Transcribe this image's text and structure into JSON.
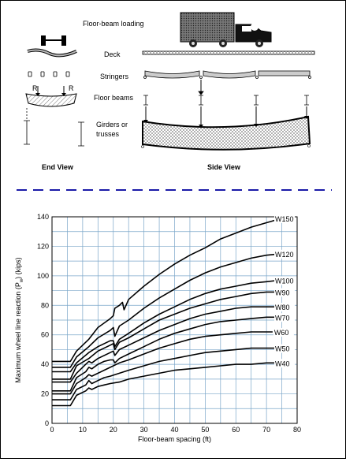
{
  "diagram": {
    "title": "Floor-beam loading",
    "parts": {
      "deck": "Deck",
      "stringers": "Stringers",
      "floor_beams": "Floor beams",
      "girders": "Girders or trusses"
    },
    "girders_line1": "Girders or",
    "girders_line2": "trusses",
    "reaction_left": "R",
    "reaction_right": "R",
    "end_view": "End View",
    "side_view": "Side View",
    "separator_color": "#1a1aa8"
  },
  "chart_data": {
    "type": "line",
    "xlabel": "Floor-beam spacing (ft)",
    "ylabel": "Maximum wheel line reaction (P",
    "ylabel_sub": "w",
    "ylabel_end": ") (kips)",
    "xlim": [
      0,
      80
    ],
    "ylim": [
      0,
      140
    ],
    "x_ticks": [
      "0",
      "10",
      "20",
      "30",
      "40",
      "50",
      "60",
      "70",
      "80"
    ],
    "y_ticks": [
      "0",
      "20",
      "40",
      "60",
      "80",
      "100",
      "120",
      "140"
    ],
    "grid": true,
    "grid_color": "#7aa6c9",
    "series": [
      {
        "name": "W150",
        "points": [
          [
            0,
            42
          ],
          [
            6,
            42
          ],
          [
            8,
            49
          ],
          [
            12,
            57
          ],
          [
            15,
            65
          ],
          [
            19,
            71
          ],
          [
            20,
            73
          ],
          [
            20.5,
            78
          ],
          [
            22,
            80
          ],
          [
            23,
            82
          ],
          [
            23.5,
            77
          ],
          [
            25,
            84
          ],
          [
            30,
            93
          ],
          [
            35,
            101
          ],
          [
            40,
            108
          ],
          [
            45,
            114
          ],
          [
            50,
            119
          ],
          [
            55,
            125
          ],
          [
            60,
            129
          ],
          [
            65,
            133
          ],
          [
            70,
            136
          ],
          [
            75,
            139
          ]
        ]
      },
      {
        "name": "W120",
        "points": [
          [
            0,
            38
          ],
          [
            6,
            38
          ],
          [
            8,
            45
          ],
          [
            12,
            52
          ],
          [
            15,
            58
          ],
          [
            19,
            63
          ],
          [
            20,
            65
          ],
          [
            20.5,
            59
          ],
          [
            22,
            66
          ],
          [
            25,
            70
          ],
          [
            30,
            78
          ],
          [
            35,
            85
          ],
          [
            40,
            91
          ],
          [
            45,
            97
          ],
          [
            50,
            102
          ],
          [
            55,
            106
          ],
          [
            60,
            109
          ],
          [
            65,
            112
          ],
          [
            70,
            114
          ],
          [
            75,
            115
          ]
        ]
      },
      {
        "name": "W100",
        "points": [
          [
            0,
            35
          ],
          [
            6,
            35
          ],
          [
            8,
            41
          ],
          [
            12,
            48
          ],
          [
            15,
            52
          ],
          [
            19,
            56
          ],
          [
            20,
            56
          ],
          [
            20.5,
            52
          ],
          [
            22,
            57
          ],
          [
            25,
            61
          ],
          [
            30,
            68
          ],
          [
            35,
            74
          ],
          [
            40,
            79
          ],
          [
            45,
            84
          ],
          [
            50,
            88
          ],
          [
            55,
            91
          ],
          [
            60,
            93
          ],
          [
            65,
            95
          ],
          [
            70,
            96
          ],
          [
            74,
            97
          ]
        ]
      },
      {
        "name": "W90",
        "points": [
          [
            0,
            30
          ],
          [
            6,
            30
          ],
          [
            8,
            39
          ],
          [
            12,
            44
          ],
          [
            15,
            49
          ],
          [
            19,
            53
          ],
          [
            20,
            54
          ],
          [
            20.5,
            50
          ],
          [
            22,
            55
          ],
          [
            25,
            58
          ],
          [
            30,
            64
          ],
          [
            35,
            70
          ],
          [
            40,
            74
          ],
          [
            45,
            78
          ],
          [
            50,
            81
          ],
          [
            55,
            84
          ],
          [
            60,
            86
          ],
          [
            65,
            88
          ],
          [
            70,
            89
          ],
          [
            74,
            89
          ]
        ]
      },
      {
        "name": "W80",
        "points": [
          [
            0,
            28
          ],
          [
            6,
            28
          ],
          [
            8,
            34
          ],
          [
            11,
            40
          ],
          [
            12,
            42
          ],
          [
            13,
            41
          ],
          [
            15,
            44
          ],
          [
            19,
            48
          ],
          [
            20,
            49
          ],
          [
            20.5,
            46
          ],
          [
            22,
            50
          ],
          [
            25,
            53
          ],
          [
            30,
            58
          ],
          [
            35,
            63
          ],
          [
            40,
            67
          ],
          [
            45,
            71
          ],
          [
            50,
            74
          ],
          [
            55,
            76
          ],
          [
            60,
            78
          ],
          [
            65,
            79
          ],
          [
            70,
            79
          ],
          [
            74,
            79
          ]
        ]
      },
      {
        "name": "W70",
        "points": [
          [
            0,
            22
          ],
          [
            6,
            22
          ],
          [
            8,
            31
          ],
          [
            11,
            35
          ],
          [
            12,
            38
          ],
          [
            13,
            37
          ],
          [
            15,
            40
          ],
          [
            17,
            42
          ],
          [
            19,
            43
          ],
          [
            20,
            43
          ],
          [
            20.5,
            41
          ],
          [
            22,
            44
          ],
          [
            25,
            47
          ],
          [
            30,
            52
          ],
          [
            35,
            57
          ],
          [
            40,
            61
          ],
          [
            45,
            64
          ],
          [
            50,
            67
          ],
          [
            55,
            69
          ],
          [
            60,
            70
          ],
          [
            65,
            71
          ],
          [
            70,
            72
          ],
          [
            74,
            72
          ]
        ]
      },
      {
        "name": "W60",
        "points": [
          [
            0,
            20
          ],
          [
            6,
            20
          ],
          [
            8,
            27
          ],
          [
            11,
            31
          ],
          [
            12,
            33
          ],
          [
            13,
            32
          ],
          [
            15,
            34
          ],
          [
            17,
            36
          ],
          [
            19,
            38
          ],
          [
            22,
            41
          ],
          [
            25,
            43
          ],
          [
            30,
            47
          ],
          [
            35,
            51
          ],
          [
            40,
            54
          ],
          [
            45,
            57
          ],
          [
            50,
            59
          ],
          [
            55,
            60
          ],
          [
            60,
            61
          ],
          [
            65,
            62
          ],
          [
            70,
            62
          ],
          [
            72,
            62
          ]
        ]
      },
      {
        "name": "W50",
        "points": [
          [
            0,
            16
          ],
          [
            6,
            16
          ],
          [
            8,
            23
          ],
          [
            11,
            26
          ],
          [
            12,
            29
          ],
          [
            13,
            27
          ],
          [
            15,
            29
          ],
          [
            17,
            31
          ],
          [
            19,
            32
          ],
          [
            22,
            34
          ],
          [
            25,
            36
          ],
          [
            30,
            39
          ],
          [
            35,
            42
          ],
          [
            40,
            44
          ],
          [
            45,
            46
          ],
          [
            50,
            48
          ],
          [
            55,
            49
          ],
          [
            60,
            50
          ],
          [
            65,
            51
          ],
          [
            70,
            51
          ],
          [
            73,
            51
          ]
        ]
      },
      {
        "name": "W40",
        "points": [
          [
            0,
            12
          ],
          [
            6,
            12
          ],
          [
            8,
            19
          ],
          [
            11,
            22
          ],
          [
            12,
            24
          ],
          [
            13,
            23
          ],
          [
            15,
            25
          ],
          [
            17,
            26
          ],
          [
            19,
            27
          ],
          [
            22,
            28
          ],
          [
            25,
            30
          ],
          [
            30,
            32
          ],
          [
            35,
            34
          ],
          [
            40,
            36
          ],
          [
            45,
            37
          ],
          [
            50,
            38
          ],
          [
            55,
            39
          ],
          [
            60,
            40
          ],
          [
            65,
            40
          ],
          [
            70,
            41
          ],
          [
            73,
            41
          ]
        ]
      }
    ]
  }
}
